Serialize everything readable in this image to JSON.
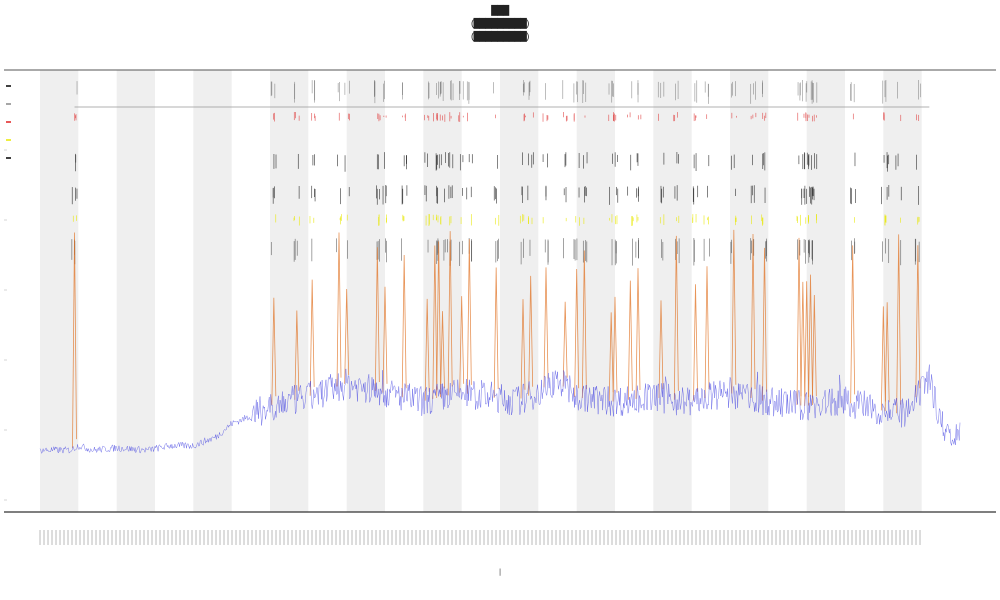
{
  "chart_data": {
    "type": "line",
    "title": "",
    "title_lines": [
      "███",
      "(█████████)",
      "(█████████)"
    ],
    "xlabel": "|",
    "ylabel": "",
    "legend_placement": "top-left",
    "legend": [
      {
        "name": "",
        "color": "#000000"
      },
      {
        "name": "",
        "color": "#888888"
      },
      {
        "name": "",
        "color": "#e02020"
      },
      {
        "name": "",
        "color": "#e8e800"
      },
      {
        "name": "",
        "color": "#000000"
      }
    ],
    "x_range": [
      0,
      240
    ],
    "y_range": [
      0,
      1
    ],
    "grid": false,
    "shaded_bands": [
      [
        0,
        10
      ],
      [
        20,
        30
      ],
      [
        40,
        50
      ],
      [
        60,
        70
      ],
      [
        80,
        90
      ],
      [
        100,
        110
      ],
      [
        120,
        130
      ],
      [
        140,
        150
      ],
      [
        160,
        170
      ],
      [
        180,
        190
      ],
      [
        200,
        210
      ],
      [
        220,
        230
      ]
    ],
    "event_span": [
      9,
      232
    ],
    "series": [
      {
        "name": "",
        "color": "#3a3ae0",
        "baseline": [
          [
            0,
            0.14
          ],
          [
            8,
            0.14
          ],
          [
            10,
            0.15
          ],
          [
            14,
            0.14
          ],
          [
            20,
            0.145
          ],
          [
            28,
            0.14
          ],
          [
            34,
            0.15
          ],
          [
            40,
            0.15
          ],
          [
            46,
            0.17
          ],
          [
            50,
            0.2
          ],
          [
            56,
            0.22
          ],
          [
            60,
            0.24
          ],
          [
            70,
            0.26
          ],
          [
            80,
            0.29
          ],
          [
            90,
            0.27
          ],
          [
            100,
            0.25
          ],
          [
            110,
            0.27
          ],
          [
            118,
            0.26
          ],
          [
            124,
            0.25
          ],
          [
            130,
            0.27
          ],
          [
            135,
            0.3
          ],
          [
            140,
            0.26
          ],
          [
            150,
            0.25
          ],
          [
            160,
            0.26
          ],
          [
            170,
            0.25
          ],
          [
            180,
            0.27
          ],
          [
            190,
            0.25
          ],
          [
            200,
            0.24
          ],
          [
            210,
            0.25
          ],
          [
            220,
            0.23
          ],
          [
            226,
            0.22
          ],
          [
            232,
            0.3
          ],
          [
            236,
            0.18
          ],
          [
            240,
            0.18
          ]
        ]
      },
      {
        "name": "",
        "color": "#e07020",
        "peaks_at": [
          9,
          61,
          67,
          71,
          78,
          80,
          88,
          90,
          95,
          101,
          103,
          104,
          105,
          107,
          110,
          112,
          119,
          126,
          128,
          132,
          137,
          140,
          142,
          149,
          150,
          154,
          156,
          162,
          166,
          171,
          174,
          181,
          186,
          189,
          198,
          199,
          200,
          201,
          202,
          212,
          220,
          221,
          224,
          229
        ]
      }
    ],
    "x_tick_labels": "numeric tick labels (illegible at this resolution)"
  }
}
